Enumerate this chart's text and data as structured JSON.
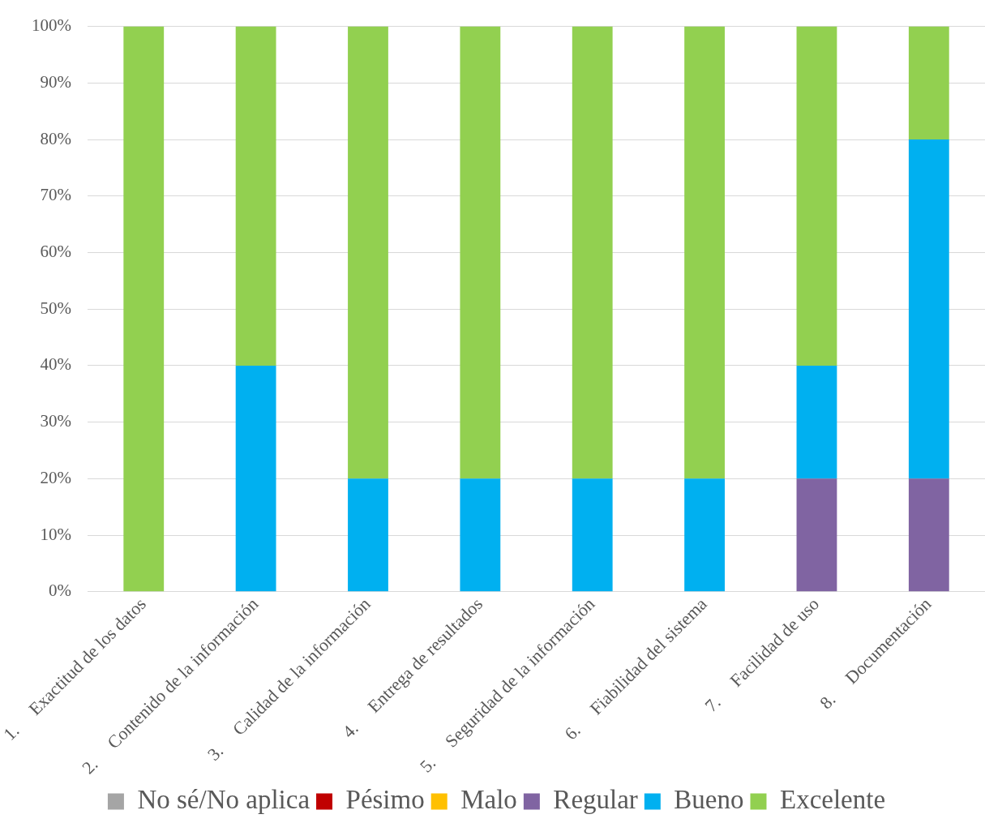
{
  "chart_data": {
    "type": "bar",
    "stacked": true,
    "grid": "y",
    "legend": "bottom",
    "categories": [
      "1.     Exactitud de los datos",
      "2.     Contenido de la información",
      "3.     Calidad de la información",
      "4.     Entrega de resultados",
      "5.     Seguridad de la información",
      "6.     Fiabilidad del sistema",
      "7.     Facilidad de uso",
      "8.     Documentación"
    ],
    "series": [
      {
        "name": "No sé/No aplica",
        "color": "#a5a5a5",
        "values": [
          0,
          0,
          0,
          0,
          0,
          0,
          0,
          0
        ]
      },
      {
        "name": "Pésimo",
        "color": "#c00000",
        "values": [
          0,
          0,
          0,
          0,
          0,
          0,
          0,
          0
        ]
      },
      {
        "name": "Malo",
        "color": "#ffc000",
        "values": [
          0,
          0,
          0,
          0,
          0,
          0,
          0,
          0
        ]
      },
      {
        "name": "Regular",
        "color": "#8064a2",
        "values": [
          0,
          0,
          0,
          0,
          0,
          0,
          20,
          20
        ]
      },
      {
        "name": "Bueno",
        "color": "#00b0f0",
        "values": [
          0,
          40,
          20,
          20,
          20,
          20,
          20,
          60
        ]
      },
      {
        "name": "Excelente",
        "color": "#92d050",
        "values": [
          100,
          60,
          80,
          80,
          80,
          80,
          60,
          20
        ]
      }
    ],
    "ylim": [
      0,
      100
    ],
    "yticks": [
      {
        "value": 0,
        "label": "0%"
      },
      {
        "value": 10,
        "label": "10%"
      },
      {
        "value": 20,
        "label": "20%"
      },
      {
        "value": 30,
        "label": "30%"
      },
      {
        "value": 40,
        "label": "40%"
      },
      {
        "value": 50,
        "label": "50%"
      },
      {
        "value": 60,
        "label": "60%"
      },
      {
        "value": 70,
        "label": "70%"
      },
      {
        "value": 80,
        "label": "80%"
      },
      {
        "value": 90,
        "label": "90%"
      },
      {
        "value": 100,
        "label": "100%"
      }
    ]
  }
}
